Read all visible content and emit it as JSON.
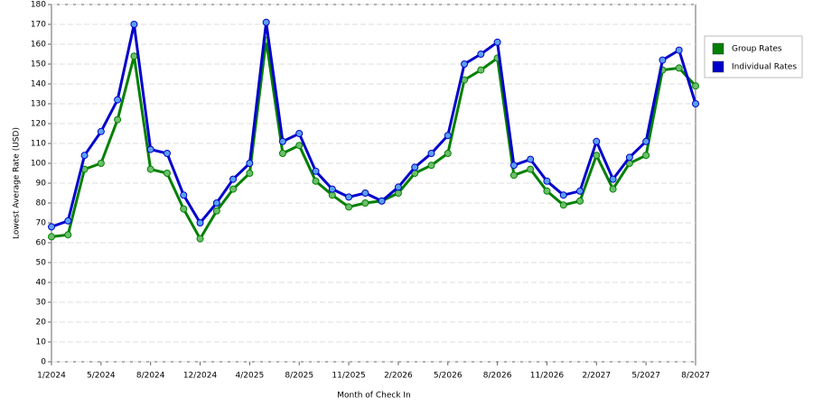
{
  "chart_data": {
    "type": "line",
    "x_label": "Month of Check In",
    "y_label": "Lowest Average Rate (USD)",
    "categories": [
      "1/2024",
      null,
      null,
      "5/2024",
      null,
      null,
      "8/2024",
      null,
      null,
      "12/2024",
      null,
      null,
      "4/2025",
      null,
      null,
      "8/2025",
      null,
      null,
      "11/2025",
      null,
      null,
      "2/2026",
      null,
      null,
      "5/2026",
      null,
      null,
      "8/2026",
      null,
      null,
      "11/2026",
      null,
      null,
      "2/2027",
      null,
      null,
      "5/2027",
      null,
      null,
      "8/2027"
    ],
    "series": [
      {
        "name": "Group Rates",
        "color": "#008000",
        "values": [
          63,
          64,
          97,
          100,
          122,
          154,
          97,
          95,
          77,
          62,
          76,
          87,
          95,
          162,
          105,
          109,
          91,
          84,
          78,
          80,
          81,
          85,
          95,
          99,
          105,
          142,
          147,
          153,
          94,
          97,
          86,
          79,
          81,
          104,
          87,
          100,
          104,
          147,
          148,
          139
        ]
      },
      {
        "name": "Individual Rates",
        "color": "#0000cc",
        "values": [
          68,
          71,
          104,
          116,
          132,
          170,
          107,
          105,
          84,
          70,
          80,
          92,
          100,
          171,
          111,
          115,
          96,
          87,
          83,
          85,
          81,
          88,
          98,
          105,
          114,
          150,
          155,
          161,
          99,
          102,
          91,
          84,
          86,
          111,
          92,
          103,
          111,
          152,
          157,
          130
        ]
      }
    ],
    "ylim": [
      0,
      180
    ],
    "yticks": [
      0,
      10,
      20,
      30,
      40,
      50,
      60,
      70,
      80,
      90,
      100,
      110,
      120,
      130,
      140,
      150,
      160,
      170,
      180
    ],
    "grid": true,
    "legend": "right"
  }
}
